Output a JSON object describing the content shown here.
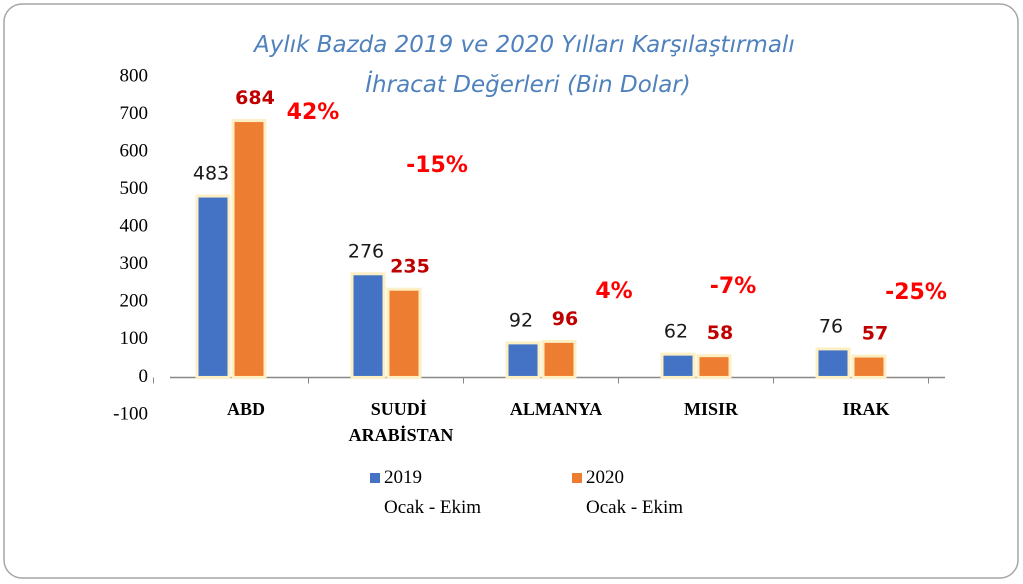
{
  "chart_data": {
    "type": "bar",
    "title": "Aylık Bazda 2019 ve 2020 Yılları Karşılaştırmalı İhracat Değerleri (Bin Dolar)",
    "categories": [
      "ABD",
      "SUUDİ ARABİSTAN",
      "ALMANYA",
      "MISIR",
      "IRAK"
    ],
    "series": [
      {
        "name": "2019 Ocak - Ekim",
        "color": "#4472c4",
        "values": [
          483,
          276,
          92,
          62,
          76
        ]
      },
      {
        "name": "2020 Ocak - Ekim",
        "color": "#ed7d31",
        "values": [
          684,
          235,
          96,
          58,
          57
        ]
      }
    ],
    "change_labels": [
      "42%",
      "-15%",
      "4%",
      "-7%",
      "-25%"
    ],
    "ylim": [
      -100,
      800
    ],
    "yticks": [
      -100,
      0,
      100,
      200,
      300,
      400,
      500,
      600,
      700,
      800
    ],
    "legend": "bottom"
  }
}
